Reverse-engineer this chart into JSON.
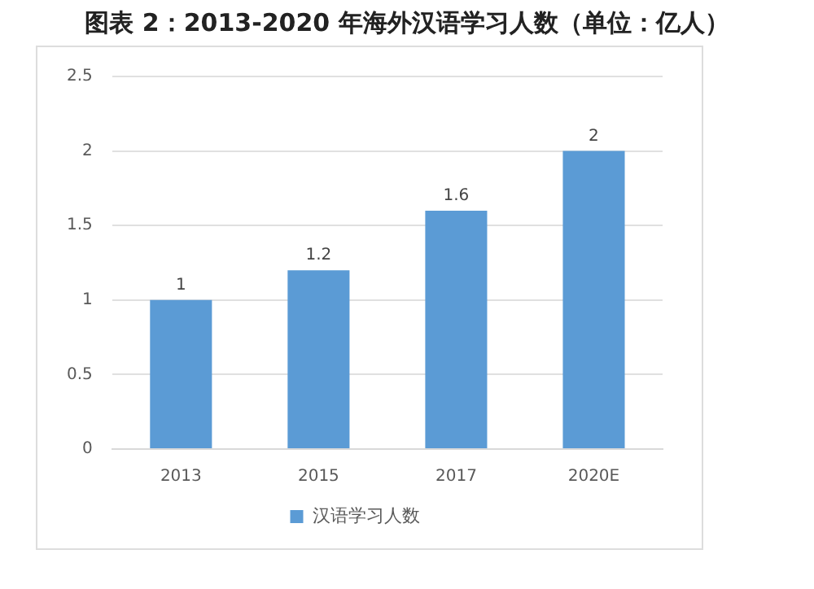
{
  "chart_data": {
    "type": "bar",
    "title": "图表 2：2013-2020 年海外汉语学习人数（单位：亿人）",
    "categories": [
      "2013",
      "2015",
      "2017",
      "2020E"
    ],
    "series": [
      {
        "name": "汉语学习人数",
        "color": "#5b9bd5",
        "values": [
          1,
          1.2,
          1.6,
          2
        ]
      }
    ],
    "ylim": [
      0,
      2.5
    ],
    "yticks": [
      0,
      0.5,
      1,
      1.5,
      2,
      2.5
    ],
    "grid": "y",
    "legend": "bottom",
    "data_labels": true
  }
}
